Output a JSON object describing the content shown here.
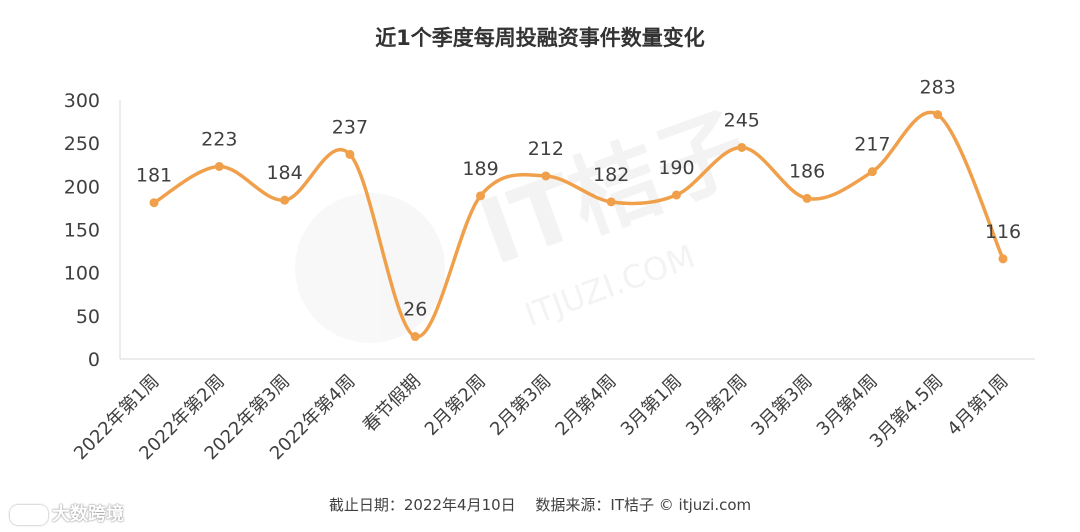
{
  "chart_data": {
    "type": "line",
    "title": "近1个季度每周投融资事件数量变化",
    "categories": [
      "2022年第1周",
      "2022年第2周",
      "2022年第3周",
      "2022年第4周",
      "春节假期",
      "2月第2周",
      "2月第3周",
      "2月第4周",
      "3月第1周",
      "3月第2周",
      "3月第3周",
      "3月第4周",
      "3月第4.5周",
      "4月第1周"
    ],
    "series": [
      {
        "values": [
          181,
          223,
          184,
          237,
          26,
          189,
          212,
          182,
          190,
          245,
          186,
          217,
          283,
          116
        ]
      }
    ],
    "ylim": [
      0,
      300
    ],
    "yticks": [
      0,
      50,
      100,
      150,
      200,
      250,
      300
    ],
    "smooth": true,
    "grid": false,
    "color": "#F0A04B"
  },
  "footer": "截止日期：2022年4月10日　 数据来源：IT桔子 © itjuzi.com",
  "watermark": {
    "logo_text": "IT桔子",
    "url_text": "ITJUZI.COM"
  },
  "brand": {
    "label": "大数跨境",
    "icon": "brand-logo-icon"
  }
}
